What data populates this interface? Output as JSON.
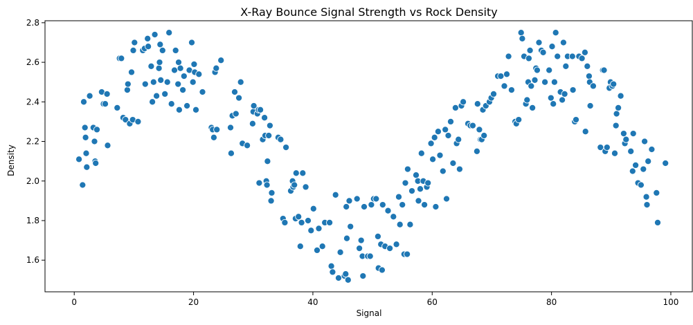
{
  "chart_data": {
    "type": "scatter",
    "title": "X-Ray Bounce Signal Strength vs Rock Density",
    "xlabel": "Signal",
    "ylabel": "Density",
    "xlim": [
      -4.9,
      103.6
    ],
    "ylim": [
      1.44,
      2.81
    ],
    "xticks": [
      0,
      20,
      40,
      60,
      80,
      100
    ],
    "yticks": [
      1.6,
      1.8,
      2.0,
      2.2,
      2.4,
      2.6,
      2.8
    ],
    "grid": false,
    "marker_color": "#1f77b4",
    "marker_edge_color": "#ffffff",
    "points": [
      [
        0.8,
        2.11
      ],
      [
        1.4,
        1.98
      ],
      [
        1.6,
        2.4
      ],
      [
        1.8,
        2.27
      ],
      [
        1.9,
        2.22
      ],
      [
        2.0,
        2.14
      ],
      [
        2.1,
        2.07
      ],
      [
        2.6,
        2.43
      ],
      [
        3.2,
        2.27
      ],
      [
        3.4,
        2.2
      ],
      [
        3.5,
        2.1
      ],
      [
        3.6,
        2.09
      ],
      [
        3.8,
        2.26
      ],
      [
        4.6,
        2.45
      ],
      [
        4.9,
        2.39
      ],
      [
        5.2,
        2.39
      ],
      [
        5.5,
        2.44
      ],
      [
        5.6,
        2.18
      ],
      [
        7.2,
        2.37
      ],
      [
        7.6,
        2.62
      ],
      [
        7.9,
        2.62
      ],
      [
        8.2,
        2.32
      ],
      [
        8.6,
        2.31
      ],
      [
        8.9,
        2.46
      ],
      [
        9.0,
        2.49
      ],
      [
        9.3,
        2.29
      ],
      [
        9.6,
        2.55
      ],
      [
        9.8,
        2.31
      ],
      [
        9.9,
        2.66
      ],
      [
        10.1,
        2.7
      ],
      [
        10.7,
        2.3
      ],
      [
        11.5,
        2.66
      ],
      [
        11.8,
        2.67
      ],
      [
        11.9,
        2.49
      ],
      [
        12.3,
        2.72
      ],
      [
        12.4,
        2.68
      ],
      [
        12.9,
        2.58
      ],
      [
        13.1,
        2.4
      ],
      [
        13.3,
        2.5
      ],
      [
        13.5,
        2.74
      ],
      [
        13.8,
        2.43
      ],
      [
        14.2,
        2.57
      ],
      [
        14.3,
        2.6
      ],
      [
        14.4,
        2.69
      ],
      [
        14.5,
        2.51
      ],
      [
        14.8,
        2.66
      ],
      [
        15.2,
        2.44
      ],
      [
        15.6,
        2.5
      ],
      [
        15.9,
        2.75
      ],
      [
        16.3,
        2.39
      ],
      [
        16.8,
        2.56
      ],
      [
        17.0,
        2.66
      ],
      [
        17.4,
        2.49
      ],
      [
        17.5,
        2.6
      ],
      [
        17.6,
        2.36
      ],
      [
        17.8,
        2.57
      ],
      [
        18.2,
        2.46
      ],
      [
        18.4,
        2.53
      ],
      [
        18.9,
        2.38
      ],
      [
        19.3,
        2.56
      ],
      [
        19.7,
        2.7
      ],
      [
        19.9,
        2.5
      ],
      [
        20.1,
        2.59
      ],
      [
        20.2,
        2.55
      ],
      [
        20.4,
        2.36
      ],
      [
        20.9,
        2.54
      ],
      [
        21.5,
        2.45
      ],
      [
        23.0,
        2.27
      ],
      [
        23.2,
        2.26
      ],
      [
        23.4,
        2.22
      ],
      [
        23.6,
        2.55
      ],
      [
        23.8,
        2.57
      ],
      [
        23.9,
        2.26
      ],
      [
        24.6,
        2.61
      ],
      [
        26.2,
        2.27
      ],
      [
        26.3,
        2.14
      ],
      [
        26.5,
        2.33
      ],
      [
        26.9,
        2.45
      ],
      [
        27.1,
        2.34
      ],
      [
        27.6,
        2.42
      ],
      [
        27.9,
        2.5
      ],
      [
        28.2,
        2.19
      ],
      [
        29.0,
        2.18
      ],
      [
        29.9,
        2.29
      ],
      [
        30.0,
        2.35
      ],
      [
        30.1,
        2.38
      ],
      [
        30.7,
        2.34
      ],
      [
        30.9,
        2.36
      ],
      [
        31.0,
        1.99
      ],
      [
        31.2,
        2.36
      ],
      [
        31.6,
        2.21
      ],
      [
        31.9,
        2.32
      ],
      [
        32.0,
        2.23
      ],
      [
        32.2,
        2.0
      ],
      [
        32.3,
        1.98
      ],
      [
        32.4,
        2.1
      ],
      [
        32.6,
        2.23
      ],
      [
        32.8,
        2.28
      ],
      [
        33.0,
        1.9
      ],
      [
        33.1,
        1.94
      ],
      [
        34.2,
        2.22
      ],
      [
        34.6,
        2.21
      ],
      [
        35.0,
        1.81
      ],
      [
        35.3,
        1.79
      ],
      [
        35.5,
        2.17
      ],
      [
        36.3,
        1.95
      ],
      [
        36.6,
        2.0
      ],
      [
        36.7,
        1.97
      ],
      [
        36.9,
        1.98
      ],
      [
        37.1,
        1.81
      ],
      [
        37.2,
        2.04
      ],
      [
        37.6,
        1.82
      ],
      [
        37.9,
        1.67
      ],
      [
        38.1,
        1.79
      ],
      [
        38.3,
        2.04
      ],
      [
        38.8,
        1.97
      ],
      [
        39.2,
        1.8
      ],
      [
        39.7,
        1.75
      ],
      [
        40.1,
        1.86
      ],
      [
        40.7,
        1.65
      ],
      [
        41.0,
        1.76
      ],
      [
        41.6,
        1.67
      ],
      [
        42.0,
        1.79
      ],
      [
        42.8,
        1.79
      ],
      [
        43.1,
        1.57
      ],
      [
        43.3,
        1.54
      ],
      [
        43.8,
        1.93
      ],
      [
        44.3,
        1.51
      ],
      [
        44.6,
        1.64
      ],
      [
        45.3,
        1.52
      ],
      [
        45.5,
        1.53
      ],
      [
        45.6,
        1.87
      ],
      [
        45.7,
        1.71
      ],
      [
        45.9,
        1.5
      ],
      [
        46.1,
        1.9
      ],
      [
        46.3,
        1.77
      ],
      [
        47.4,
        1.91
      ],
      [
        47.8,
        1.66
      ],
      [
        48.1,
        1.7
      ],
      [
        48.3,
        1.62
      ],
      [
        48.4,
        1.52
      ],
      [
        48.6,
        1.87
      ],
      [
        49.2,
        1.62
      ],
      [
        49.6,
        1.62
      ],
      [
        49.8,
        1.88
      ],
      [
        50.2,
        1.91
      ],
      [
        50.6,
        1.91
      ],
      [
        50.9,
        1.72
      ],
      [
        51.0,
        1.56
      ],
      [
        51.4,
        1.68
      ],
      [
        51.6,
        1.55
      ],
      [
        51.7,
        1.88
      ],
      [
        52.1,
        1.67
      ],
      [
        52.6,
        1.85
      ],
      [
        52.9,
        1.66
      ],
      [
        53.5,
        1.82
      ],
      [
        54.0,
        1.68
      ],
      [
        54.4,
        1.92
      ],
      [
        54.6,
        1.78
      ],
      [
        55.0,
        1.88
      ],
      [
        55.3,
        1.63
      ],
      [
        55.5,
        1.99
      ],
      [
        55.8,
        1.63
      ],
      [
        55.9,
        2.06
      ],
      [
        56.3,
        1.78
      ],
      [
        56.6,
        1.95
      ],
      [
        57.3,
        2.03
      ],
      [
        57.6,
        2.0
      ],
      [
        57.7,
        1.9
      ],
      [
        58.0,
        1.96
      ],
      [
        58.2,
        2.14
      ],
      [
        58.5,
        2.0
      ],
      [
        58.7,
        1.88
      ],
      [
        59.1,
        1.97
      ],
      [
        59.3,
        1.99
      ],
      [
        59.8,
        2.19
      ],
      [
        60.1,
        2.11
      ],
      [
        60.4,
        2.22
      ],
      [
        60.6,
        1.87
      ],
      [
        61.0,
        2.25
      ],
      [
        61.3,
        2.13
      ],
      [
        61.8,
        2.05
      ],
      [
        62.2,
        2.26
      ],
      [
        62.4,
        1.91
      ],
      [
        62.7,
        2.23
      ],
      [
        63.1,
        2.3
      ],
      [
        63.5,
        2.09
      ],
      [
        63.9,
        2.37
      ],
      [
        64.1,
        2.19
      ],
      [
        64.4,
        2.21
      ],
      [
        64.6,
        2.06
      ],
      [
        64.9,
        2.38
      ],
      [
        65.2,
        2.4
      ],
      [
        66.0,
        2.29
      ],
      [
        66.4,
        2.28
      ],
      [
        66.8,
        2.28
      ],
      [
        67.5,
        2.15
      ],
      [
        67.6,
        2.39
      ],
      [
        67.9,
        2.26
      ],
      [
        68.1,
        2.21
      ],
      [
        68.3,
        2.21
      ],
      [
        68.5,
        2.36
      ],
      [
        68.7,
        2.23
      ],
      [
        69.0,
        2.38
      ],
      [
        69.6,
        2.4
      ],
      [
        69.9,
        2.42
      ],
      [
        70.3,
        2.44
      ],
      [
        71.0,
        2.53
      ],
      [
        71.5,
        2.53
      ],
      [
        72.1,
        2.48
      ],
      [
        72.5,
        2.54
      ],
      [
        72.8,
        2.63
      ],
      [
        73.3,
        2.46
      ],
      [
        73.9,
        2.3
      ],
      [
        74.1,
        2.29
      ],
      [
        74.5,
        2.31
      ],
      [
        74.9,
        2.75
      ],
      [
        75.1,
        2.72
      ],
      [
        75.4,
        2.63
      ],
      [
        75.7,
        2.39
      ],
      [
        75.9,
        2.41
      ],
      [
        76.1,
        2.5
      ],
      [
        76.2,
        2.62
      ],
      [
        76.4,
        2.66
      ],
      [
        76.6,
        2.48
      ],
      [
        76.8,
        2.37
      ],
      [
        77.2,
        2.51
      ],
      [
        77.4,
        2.57
      ],
      [
        77.6,
        2.56
      ],
      [
        77.9,
        2.7
      ],
      [
        78.3,
        2.66
      ],
      [
        78.6,
        2.65
      ],
      [
        78.9,
        2.5
      ],
      [
        79.6,
        2.56
      ],
      [
        79.9,
        2.42
      ],
      [
        80.1,
        2.68
      ],
      [
        80.3,
        2.39
      ],
      [
        80.5,
        2.5
      ],
      [
        80.7,
        2.75
      ],
      [
        81.0,
        2.63
      ],
      [
        81.5,
        2.45
      ],
      [
        81.8,
        2.41
      ],
      [
        82.0,
        2.7
      ],
      [
        82.2,
        2.44
      ],
      [
        82.4,
        2.58
      ],
      [
        82.7,
        2.63
      ],
      [
        83.5,
        2.63
      ],
      [
        83.6,
        2.46
      ],
      [
        83.9,
        2.3
      ],
      [
        84.1,
        2.31
      ],
      [
        84.6,
        2.63
      ],
      [
        85.1,
        2.62
      ],
      [
        85.6,
        2.65
      ],
      [
        85.7,
        2.25
      ],
      [
        86.0,
        2.58
      ],
      [
        86.3,
        2.53
      ],
      [
        86.4,
        2.5
      ],
      [
        86.5,
        2.38
      ],
      [
        87.0,
        2.48
      ],
      [
        88.2,
        2.17
      ],
      [
        88.6,
        2.56
      ],
      [
        88.8,
        2.56
      ],
      [
        89.0,
        2.15
      ],
      [
        89.3,
        2.17
      ],
      [
        89.7,
        2.47
      ],
      [
        89.9,
        2.5
      ],
      [
        90.2,
        2.48
      ],
      [
        90.4,
        2.49
      ],
      [
        90.6,
        2.14
      ],
      [
        90.8,
        2.28
      ],
      [
        90.9,
        2.34
      ],
      [
        91.2,
        2.37
      ],
      [
        91.6,
        2.43
      ],
      [
        92.1,
        2.24
      ],
      [
        92.3,
        2.19
      ],
      [
        92.5,
        2.21
      ],
      [
        93.3,
        2.15
      ],
      [
        93.6,
        2.05
      ],
      [
        93.7,
        2.24
      ],
      [
        94.1,
        2.08
      ],
      [
        94.5,
        1.99
      ],
      [
        95.0,
        1.98
      ],
      [
        95.4,
        2.06
      ],
      [
        95.6,
        2.2
      ],
      [
        95.9,
        1.92
      ],
      [
        96.0,
        1.88
      ],
      [
        96.2,
        2.1
      ],
      [
        96.8,
        2.16
      ],
      [
        97.6,
        1.94
      ],
      [
        97.8,
        1.79
      ],
      [
        99.1,
        2.09
      ]
    ]
  }
}
